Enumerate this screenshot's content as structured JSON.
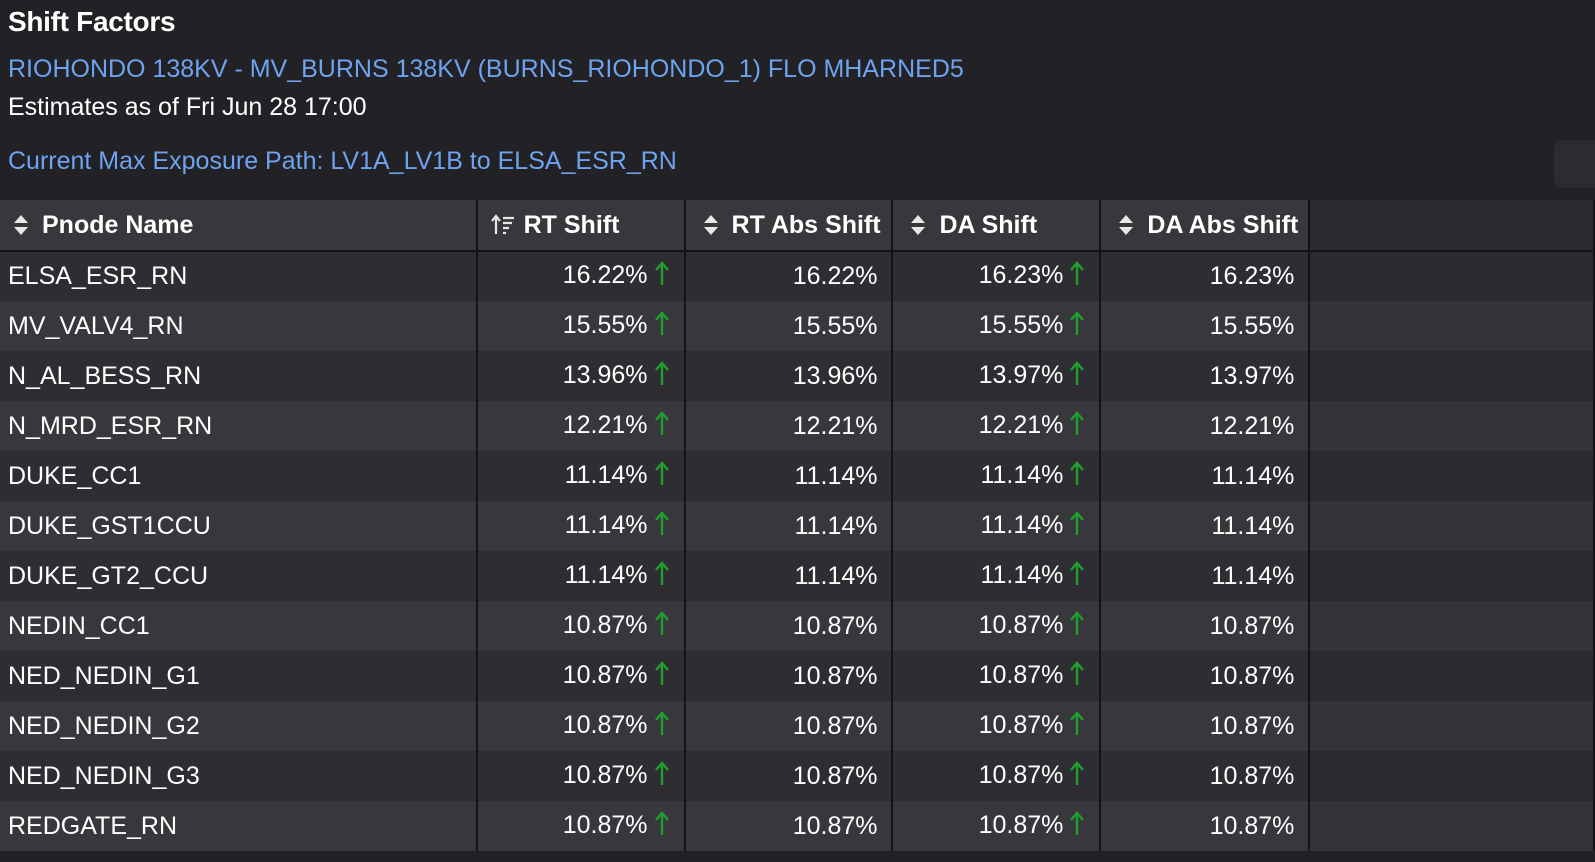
{
  "header": {
    "title": "Shift Factors",
    "constraint": "RIOHONDO 138KV - MV_BURNS 138KV (BURNS_RIOHONDO_1) FLO MHARNED5",
    "estimates": "Estimates as of Fri Jun 28 17:00",
    "max_path": "Current Max Exposure Path: LV1A_LV1B to ELSA_ESR_RN"
  },
  "table": {
    "columns": [
      {
        "label": "Pnode Name",
        "icon": "sort-icon"
      },
      {
        "label": "RT Shift",
        "icon": "sort-desc-icon"
      },
      {
        "label": "RT Abs Shift",
        "icon": "sort-icon"
      },
      {
        "label": "DA Shift",
        "icon": "sort-icon"
      },
      {
        "label": "DA Abs Shift",
        "icon": "sort-icon"
      }
    ],
    "rows": [
      {
        "name": "ELSA_ESR_RN",
        "rt": "16.22%",
        "rt_abs": "16.22%",
        "da": "16.23%",
        "da_abs": "16.23%"
      },
      {
        "name": "MV_VALV4_RN",
        "rt": "15.55%",
        "rt_abs": "15.55%",
        "da": "15.55%",
        "da_abs": "15.55%"
      },
      {
        "name": "N_AL_BESS_RN",
        "rt": "13.96%",
        "rt_abs": "13.96%",
        "da": "13.97%",
        "da_abs": "13.97%"
      },
      {
        "name": "N_MRD_ESR_RN",
        "rt": "12.21%",
        "rt_abs": "12.21%",
        "da": "12.21%",
        "da_abs": "12.21%"
      },
      {
        "name": "DUKE_CC1",
        "rt": "11.14%",
        "rt_abs": "11.14%",
        "da": "11.14%",
        "da_abs": "11.14%"
      },
      {
        "name": "DUKE_GST1CCU",
        "rt": "11.14%",
        "rt_abs": "11.14%",
        "da": "11.14%",
        "da_abs": "11.14%"
      },
      {
        "name": "DUKE_GT2_CCU",
        "rt": "11.14%",
        "rt_abs": "11.14%",
        "da": "11.14%",
        "da_abs": "11.14%"
      },
      {
        "name": "NEDIN_CC1",
        "rt": "10.87%",
        "rt_abs": "10.87%",
        "da": "10.87%",
        "da_abs": "10.87%"
      },
      {
        "name": "NED_NEDIN_G1",
        "rt": "10.87%",
        "rt_abs": "10.87%",
        "da": "10.87%",
        "da_abs": "10.87%"
      },
      {
        "name": "NED_NEDIN_G2",
        "rt": "10.87%",
        "rt_abs": "10.87%",
        "da": "10.87%",
        "da_abs": "10.87%"
      },
      {
        "name": "NED_NEDIN_G3",
        "rt": "10.87%",
        "rt_abs": "10.87%",
        "da": "10.87%",
        "da_abs": "10.87%"
      },
      {
        "name": "REDGATE_RN",
        "rt": "10.87%",
        "rt_abs": "10.87%",
        "da": "10.87%",
        "da_abs": "10.87%"
      }
    ],
    "trend_icon": "arrow-up-icon",
    "trend_color": "#1fa02e"
  },
  "colors": {
    "background": "#222125",
    "link": "#6ea3f0",
    "row_dark": "#2e2d32",
    "row_light": "#38373c"
  }
}
